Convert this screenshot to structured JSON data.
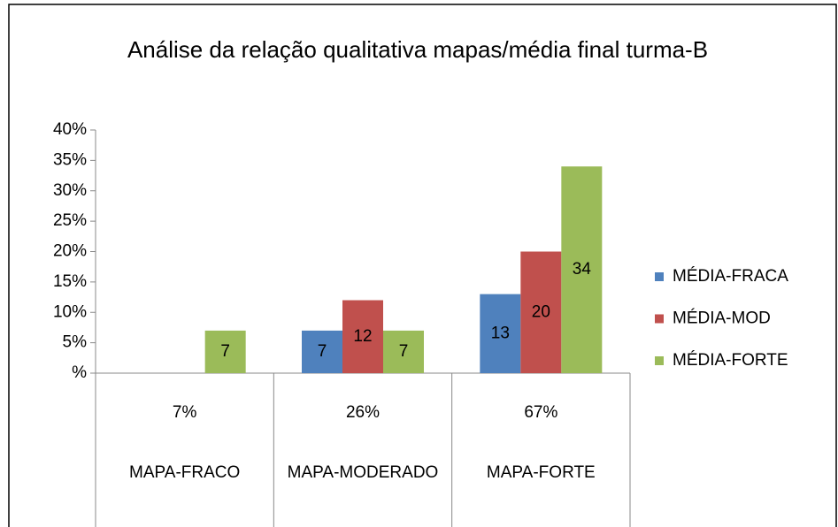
{
  "chart_data": {
    "type": "bar",
    "title": "Análise da relação qualitativa mapas/média final turma-B",
    "categories": [
      "MAPA-FRACO",
      "MAPA-MODERADO",
      "MAPA-FORTE"
    ],
    "category_labels": [
      "7%",
      "26%",
      "67%"
    ],
    "series": [
      {
        "name": "MÉDIA-FRACA",
        "color": "#4f81bd",
        "values": [
          null,
          7,
          13
        ]
      },
      {
        "name": "MÉDIA-MOD",
        "color": "#c0504d",
        "values": [
          null,
          12,
          20
        ]
      },
      {
        "name": "MÉDIA-FORTE",
        "color": "#9bbb59",
        "values": [
          7,
          7,
          34
        ]
      }
    ],
    "ylim": [
      0,
      40
    ],
    "yticks": [
      {
        "value": 0,
        "label": "%"
      },
      {
        "value": 5,
        "label": "5%"
      },
      {
        "value": 10,
        "label": "10%"
      },
      {
        "value": 15,
        "label": "15%"
      },
      {
        "value": 20,
        "label": "20%"
      },
      {
        "value": 25,
        "label": "25%"
      },
      {
        "value": 30,
        "label": "30%"
      },
      {
        "value": 35,
        "label": "35%"
      },
      {
        "value": 40,
        "label": "40%"
      }
    ],
    "grid": false,
    "legend": "right",
    "data_labels": true
  }
}
